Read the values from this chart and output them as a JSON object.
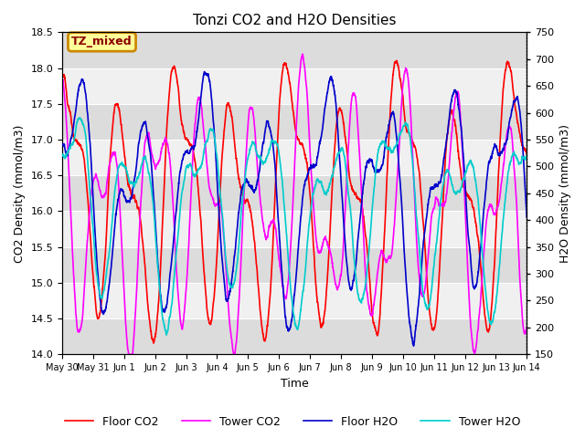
{
  "title": "Tonzi CO2 and H2O Densities",
  "xlabel": "Time",
  "ylabel_left": "CO2 Density (mmol/m3)",
  "ylabel_right": "H2O Density (mmol/m3)",
  "annotation_text": "TZ_mixed",
  "annotation_facecolor": "#FFFF99",
  "annotation_edgecolor": "#CC8800",
  "background_color": "#FFFFFF",
  "plot_bg_color": "#FFFFFF",
  "band_color_light": "#F0F0F0",
  "band_color_dark": "#DCDCDC",
  "ylim_left": [
    14.0,
    18.5
  ],
  "ylim_right": [
    150,
    750
  ],
  "x_start_days": 0,
  "x_end_days": 15,
  "n_points": 3000,
  "series": {
    "floor_co2": {
      "color": "#FF0000",
      "label": "Floor CO2",
      "lw": 1.2
    },
    "tower_co2": {
      "color": "#FF00FF",
      "label": "Tower CO2",
      "lw": 1.2
    },
    "floor_h2o": {
      "color": "#0000CC",
      "label": "Floor H2O",
      "lw": 1.2
    },
    "tower_h2o": {
      "color": "#00CCCC",
      "label": "Tower H2O",
      "lw": 1.2
    }
  },
  "xtick_labels": [
    "May 30",
    "May 31",
    "Jun 1",
    "Jun 2",
    "Jun 3",
    "Jun 4",
    "Jun 5",
    "Jun 6",
    "Jun 7",
    "Jun 8",
    "Jun 9",
    "Jun 10",
    "Jun 11",
    "Jun 12",
    "Jun 13",
    "Jun 14"
  ],
  "xtick_positions": [
    0,
    1,
    2,
    3,
    4,
    5,
    6,
    7,
    8,
    9,
    10,
    11,
    12,
    13,
    14,
    15
  ],
  "yticks_left": [
    14.0,
    14.5,
    15.0,
    15.5,
    16.0,
    16.5,
    17.0,
    17.5,
    18.0,
    18.5
  ],
  "yticks_right": [
    150,
    200,
    250,
    300,
    350,
    400,
    450,
    500,
    550,
    600,
    650,
    700,
    750
  ],
  "legend_ncol": 4,
  "figsize": [
    6.4,
    4.8
  ],
  "dpi": 100
}
